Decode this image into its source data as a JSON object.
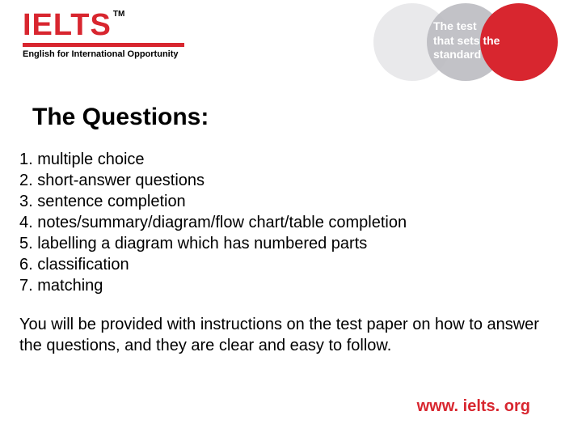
{
  "logo": {
    "text": "IELTS",
    "tm": "TM",
    "sub": "English for International Opportunity"
  },
  "tagline": {
    "l1": "The test",
    "l2": "that sets the",
    "l3": "standard"
  },
  "title": "The Questions:",
  "items": {
    "i1": "1. multiple choice",
    "i2": "2. short-answer questions",
    "i3": "3. sentence completion",
    "i4": "4. notes/summary/diagram/flow chart/table completion",
    "i5": "5. labelling a diagram which has numbered parts",
    "i6": "6. classification",
    "i7": "7. matching"
  },
  "note": "You will be provided with instructions on the test paper on how to answer the questions, and they are clear and easy to follow.",
  "url": "www. ielts. org",
  "colors": {
    "brand_red": "#d8262f",
    "circle_light": "#e6e6e8",
    "circle_mid": "#b9b9bf",
    "background": "#ffffff",
    "text": "#000000"
  },
  "typography": {
    "title_fontsize": 30,
    "body_fontsize": 20,
    "logo_fontsize": 38,
    "tagline_fontsize": 14,
    "font_family": "Arial"
  }
}
